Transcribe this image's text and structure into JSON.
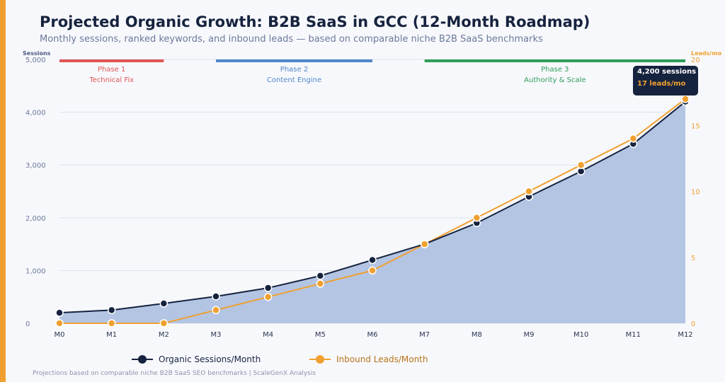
{
  "colors": {
    "accent": "#f0a030",
    "sessions": "#16233f",
    "sessions_fill": "#b3c5e3",
    "leads": "#f0a030",
    "phase1": "#e05555",
    "phase2": "#5088c8",
    "phase3": "#2e9e5b"
  },
  "header": {
    "title": "Projected Organic Growth: B2B SaaS in GCC (12-Month Roadmap)",
    "subtitle": "Monthly sessions, ranked keywords, and inbound leads — based on comparable niche B2B SaaS benchmarks"
  },
  "chart_data": {
    "type": "line",
    "title": "Projected Organic Growth: B2B SaaS in GCC (12-Month Roadmap)",
    "categories": [
      "M0",
      "M1",
      "M2",
      "M3",
      "M4",
      "M5",
      "M6",
      "M7",
      "M8",
      "M9",
      "M10",
      "M11",
      "M12"
    ],
    "y_left": {
      "label": "Sessions",
      "range": [
        0,
        5000
      ],
      "ticks": [
        "0",
        "1,000",
        "2,000",
        "3,000",
        "4,000",
        "5,000"
      ],
      "tick_values": [
        0,
        1000,
        2000,
        3000,
        4000,
        5000
      ]
    },
    "y_right": {
      "label": "Leads/mo",
      "range": [
        0,
        20
      ],
      "ticks": [
        "0",
        "5",
        "10",
        "15",
        "20"
      ],
      "tick_values": [
        0,
        5,
        10,
        15,
        20
      ]
    },
    "series": [
      {
        "name": "Organic Sessions/Month",
        "axis": "left",
        "style": "area-line",
        "values": [
          200,
          250,
          375,
          510,
          670,
          900,
          1200,
          1500,
          1900,
          2400,
          2880,
          3400,
          4200
        ]
      },
      {
        "name": "Inbound Leads/Month",
        "axis": "right",
        "style": "line",
        "values": [
          0,
          0,
          0,
          1,
          2,
          3,
          4,
          6,
          8,
          10,
          12,
          14,
          17
        ]
      }
    ],
    "phases": [
      {
        "name": "Phase 1",
        "desc": "Technical Fix",
        "start": "M0",
        "end": "M2"
      },
      {
        "name": "Phase 2",
        "desc": "Content Engine",
        "start": "M3",
        "end": "M6"
      },
      {
        "name": "Phase 3",
        "desc": "Authority & Scale",
        "start": "M7",
        "end": "M12"
      }
    ],
    "annotation": {
      "line1": "4,200 sessions",
      "line2": "17 leads/mo"
    },
    "grid": true,
    "legend_position": "bottom"
  },
  "footnote": "Projections based on comparable niche B2B SaaS SEO benchmarks | ScaleGenX Analysis"
}
